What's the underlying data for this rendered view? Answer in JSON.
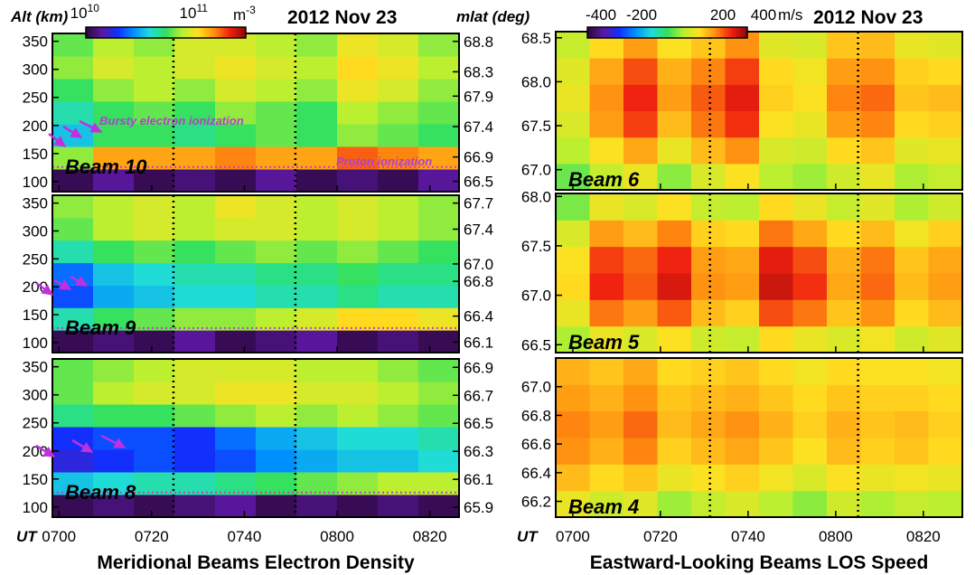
{
  "figure": {
    "left_date": "2012 Nov 23",
    "right_date": "2012 Nov 23",
    "left_ylabel": "Alt (km)",
    "right_ylabel": "mlat (deg)",
    "left_xlabel": "UT",
    "right_xlabel": "UT",
    "left_title": "Meridional Beams Electron Density",
    "right_title": "Eastward-Looking Beams LOS Speed",
    "annotations": [
      "Bursty electron ionization",
      "Proton ionization"
    ],
    "colormap": [
      "#2a0838",
      "#5a18a0",
      "#1030ff",
      "#0090ff",
      "#20dcd8",
      "#30e060",
      "#b8f030",
      "#ffe020",
      "#ff9010",
      "#f02010",
      "#8a0808"
    ],
    "colorbars": [
      {
        "clim": [
          9.96,
          11.43
        ],
        "ticks": [
          {
            "value": 10,
            "base": "10",
            "exp": "10"
          },
          {
            "value": 11,
            "base": "10",
            "exp": "11"
          }
        ],
        "unit": "m",
        "unit_exp": "-3"
      },
      {
        "clim": [
          -467,
          320
        ],
        "ticks": [
          -400,
          -200,
          200,
          400
        ],
        "unit": "m/s"
      }
    ]
  },
  "chart_data": [
    {
      "type": "heatmap",
      "label": "Beam 10",
      "xlim": [
        418.6,
        506.3
      ],
      "xticks": [
        420,
        440,
        460,
        480,
        500
      ],
      "ylim": [
        82,
        364
      ],
      "yticks": [
        100,
        150,
        200,
        250,
        300,
        350
      ],
      "y2lim": [
        66.33,
        68.93
      ],
      "y2ticks": [
        68.8,
        68.3,
        67.9,
        67.4,
        66.9,
        66.5
      ],
      "hlines": [
        126
      ],
      "vlines": [
        444.7,
        471.0
      ],
      "z": [
        [
          10.0,
          10.1,
          10.0,
          10.05,
          10.0,
          10.1,
          10.0,
          10.05,
          10.0,
          10.1
        ],
        [
          10.8,
          11.1,
          11.1,
          11.1,
          11.15,
          11.1,
          11.1,
          11.2,
          11.15,
          11.1
        ],
        [
          10.5,
          10.7,
          10.7,
          10.65,
          10.7,
          10.75,
          10.7,
          10.8,
          10.75,
          10.7
        ],
        [
          10.6,
          10.7,
          10.75,
          10.7,
          10.8,
          10.75,
          10.7,
          10.85,
          10.8,
          10.75
        ],
        [
          10.7,
          10.8,
          10.85,
          10.8,
          10.9,
          10.85,
          10.8,
          10.95,
          10.9,
          10.8
        ],
        [
          10.8,
          10.9,
          10.85,
          10.9,
          10.95,
          10.9,
          10.85,
          11.0,
          10.95,
          10.85
        ],
        [
          10.75,
          10.85,
          10.8,
          10.9,
          10.9,
          10.85,
          10.8,
          10.95,
          10.9,
          10.8
        ]
      ]
    },
    {
      "type": "heatmap",
      "label": "Beam 9",
      "xlim": [
        418.6,
        506.3
      ],
      "xticks": [
        420,
        440,
        460,
        480,
        500
      ],
      "ylim": [
        82,
        364
      ],
      "yticks": [
        100,
        150,
        200,
        250,
        300,
        350
      ],
      "y2lim": [
        65.98,
        67.79
      ],
      "y2ticks": [
        67.7,
        67.4,
        {
          "value": 67,
          "label": "67.0"
        },
        66.8,
        66.4,
        66.1
      ],
      "hlines": [
        126
      ],
      "vlines": [
        444.7,
        471.0
      ],
      "z": [
        [
          10.0,
          10.05,
          10.0,
          10.1,
          10.0,
          10.05,
          10.1,
          10.0,
          10.05,
          10.0
        ],
        [
          10.6,
          10.7,
          10.75,
          10.8,
          10.8,
          10.85,
          10.9,
          11.0,
          11.0,
          10.95
        ],
        [
          10.3,
          10.45,
          10.5,
          10.55,
          10.55,
          10.6,
          10.6,
          10.65,
          10.6,
          10.6
        ],
        [
          10.35,
          10.5,
          10.55,
          10.6,
          10.6,
          10.65,
          10.65,
          10.7,
          10.65,
          10.65
        ],
        [
          10.6,
          10.7,
          10.75,
          10.7,
          10.75,
          10.8,
          10.75,
          10.8,
          10.75,
          10.7
        ],
        [
          10.75,
          10.85,
          10.9,
          10.85,
          10.9,
          10.9,
          10.85,
          10.9,
          10.85,
          10.8
        ],
        [
          10.8,
          10.85,
          10.9,
          10.85,
          10.95,
          10.9,
          10.85,
          10.9,
          10.85,
          10.8
        ]
      ]
    },
    {
      "type": "heatmap",
      "label": "Beam 8",
      "xlim": [
        418.6,
        506.3
      ],
      "xticks": [
        {
          "value": 420,
          "label": "0700"
        },
        {
          "value": 440,
          "label": "0720"
        },
        {
          "value": 460,
          "label": "0740"
        },
        {
          "value": 480,
          "label": "0800"
        },
        {
          "value": 500,
          "label": "0820"
        }
      ],
      "ylim": [
        82,
        364
      ],
      "yticks": [
        100,
        150,
        200,
        250,
        300,
        350
      ],
      "y2lim": [
        65.83,
        66.96
      ],
      "y2ticks": [
        66.9,
        66.7,
        66.5,
        66.3,
        66.1,
        65.9
      ],
      "hlines": [
        126
      ],
      "vlines": [
        444.7,
        471.0
      ],
      "z": [
        [
          10.0,
          10.05,
          10.0,
          10.05,
          10.1,
          10.0,
          10.05,
          10.0,
          10.05,
          10.0
        ],
        [
          10.5,
          10.55,
          10.6,
          10.6,
          10.65,
          10.7,
          10.75,
          10.8,
          10.85,
          10.85
        ],
        [
          10.2,
          10.25,
          10.3,
          10.25,
          10.3,
          10.4,
          10.45,
          10.5,
          10.5,
          10.55
        ],
        [
          10.25,
          10.3,
          10.3,
          10.25,
          10.35,
          10.45,
          10.5,
          10.55,
          10.55,
          10.6
        ],
        [
          10.65,
          10.7,
          10.7,
          10.75,
          10.8,
          10.85,
          10.8,
          10.85,
          10.8,
          10.75
        ],
        [
          10.75,
          10.85,
          10.9,
          10.9,
          10.95,
          10.95,
          10.9,
          10.9,
          10.85,
          10.8
        ],
        [
          10.75,
          10.8,
          10.85,
          10.9,
          10.9,
          10.9,
          10.85,
          10.85,
          10.8,
          10.75
        ]
      ]
    },
    {
      "type": "heatmap",
      "label": "Beam 6",
      "xlim": [
        416.1,
        508.9
      ],
      "xticks": [
        420,
        440,
        460,
        480,
        500
      ],
      "ylim": [
        66.77,
        68.57
      ],
      "yticks": [
        {
          "value": 67,
          "label": "67.0"
        },
        67.5,
        {
          "value": 68,
          "label": "68.0"
        },
        68.5
      ],
      "vlines": [
        451.3,
        485.1
      ],
      "z": [
        [
          -40,
          20,
          60,
          -20,
          40,
          80,
          10,
          -10,
          30,
          60,
          0,
          20
        ],
        [
          10,
          80,
          140,
          60,
          120,
          160,
          40,
          30,
          90,
          110,
          50,
          60
        ],
        [
          40,
          150,
          220,
          120,
          180,
          230,
          80,
          60,
          150,
          170,
          90,
          100
        ],
        [
          60,
          160,
          240,
          150,
          200,
          250,
          100,
          80,
          170,
          190,
          110,
          120
        ],
        [
          50,
          140,
          210,
          130,
          170,
          220,
          90,
          70,
          150,
          160,
          100,
          90
        ],
        [
          20,
          90,
          150,
          80,
          110,
          160,
          50,
          40,
          110,
          120,
          60,
          50
        ]
      ]
    },
    {
      "type": "heatmap",
      "label": "Beam 5",
      "xlim": [
        416.1,
        508.9
      ],
      "xticks": [
        420,
        440,
        460,
        480,
        500
      ],
      "ylim": [
        66.42,
        68.03
      ],
      "yticks": [
        66.5,
        {
          "value": 67,
          "label": "67.0"
        },
        67.5,
        {
          "value": 68,
          "label": "68.0"
        }
      ],
      "vlines": [
        451.3,
        485.1
      ],
      "z": [
        [
          0,
          60,
          40,
          80,
          30,
          20,
          90,
          60,
          40,
          70,
          30,
          50
        ],
        [
          60,
          180,
          150,
          200,
          120,
          100,
          210,
          180,
          110,
          160,
          90,
          120
        ],
        [
          90,
          240,
          200,
          260,
          160,
          150,
          270,
          230,
          140,
          190,
          120,
          150
        ],
        [
          80,
          220,
          190,
          240,
          150,
          140,
          250,
          210,
          130,
          180,
          110,
          140
        ],
        [
          40,
          150,
          120,
          170,
          100,
          90,
          180,
          140,
          90,
          120,
          70,
          100
        ],
        [
          -30,
          60,
          40,
          80,
          20,
          10,
          90,
          60,
          20,
          50,
          0,
          30
        ]
      ]
    },
    {
      "type": "heatmap",
      "label": "Beam 4",
      "xlim": [
        416.1,
        508.9
      ],
      "xticks": [
        {
          "value": 420,
          "label": "0700"
        },
        {
          "value": 440,
          "label": "0720"
        },
        {
          "value": 460,
          "label": "0740"
        },
        {
          "value": 480,
          "label": "0800"
        },
        {
          "value": 500,
          "label": "0820"
        }
      ],
      "ylim": [
        66.09,
        67.2
      ],
      "yticks": [
        66.2,
        66.4,
        66.6,
        66.8,
        {
          "value": 67,
          "label": "67.0"
        }
      ],
      "vlines": [
        451.3,
        485.1
      ],
      "z": [
        [
          60,
          30,
          50,
          -10,
          20,
          40,
          10,
          -20,
          30,
          0,
          20,
          10
        ],
        [
          120,
          90,
          110,
          60,
          80,
          100,
          70,
          40,
          80,
          60,
          70,
          60
        ],
        [
          160,
          130,
          170,
          100,
          120,
          140,
          110,
          80,
          120,
          100,
          110,
          90
        ],
        [
          170,
          150,
          190,
          120,
          140,
          160,
          130,
          100,
          130,
          110,
          120,
          100
        ],
        [
          150,
          130,
          160,
          110,
          120,
          130,
          110,
          90,
          110,
          100,
          100,
          90
        ],
        [
          130,
          110,
          140,
          90,
          100,
          110,
          90,
          70,
          90,
          80,
          80,
          70
        ]
      ]
    }
  ]
}
